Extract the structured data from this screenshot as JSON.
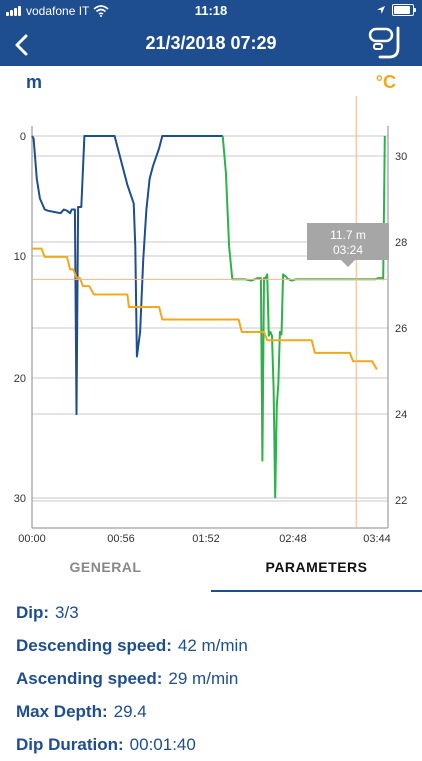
{
  "status_bar": {
    "carrier": "vodafone IT",
    "time": "11:18"
  },
  "header": {
    "title": "21/3/2018 07:29",
    "back_icon": "chevron-left-icon",
    "snorkel_icon": "snorkel-mask-icon"
  },
  "chart": {
    "left_unit": "m",
    "right_unit": "°C",
    "tooltip": {
      "depth": "11.7 m",
      "time": "03:24"
    },
    "left_ticks": [
      "0",
      "10",
      "20",
      "30"
    ],
    "right_ticks": [
      "30",
      "28",
      "26",
      "24",
      "22"
    ],
    "x_ticks": [
      "00:00",
      "00:56",
      "01:52",
      "02:48",
      "03:44"
    ]
  },
  "chart_data": {
    "type": "line",
    "xlabel": "",
    "ylabel": "m",
    "y2label": "°C",
    "xlim": [
      0,
      224
    ],
    "ylim": [
      0,
      32
    ],
    "y2lim": [
      31.0,
      21.6
    ],
    "cursor_x": 204,
    "series": [
      {
        "color": "#1e4e8f",
        "axis": "depth",
        "x": [
          0,
          1,
          3,
          5,
          8,
          10,
          14,
          18,
          20,
          22,
          24,
          25,
          27,
          28,
          29,
          31,
          33,
          37,
          40,
          48,
          52,
          56,
          60,
          64,
          65,
          66,
          68,
          70,
          72,
          74,
          76,
          80,
          82,
          84,
          88,
          100,
          115,
          120
        ],
        "y": [
          0,
          0.2,
          3.5,
          5.1,
          6.0,
          6.1,
          6.2,
          6.3,
          6.0,
          6.1,
          6.3,
          6.0,
          6.0,
          22.7,
          5.8,
          5.8,
          0,
          0,
          0,
          0,
          0,
          2,
          4,
          5.5,
          9,
          18,
          16,
          10,
          6,
          3.5,
          2.5,
          1,
          0,
          0,
          0,
          0,
          0,
          0
        ]
      },
      {
        "color": "#2db24a",
        "axis": "depth",
        "x": [
          120,
          122,
          124,
          126,
          128,
          134,
          138,
          142,
          144,
          145,
          146,
          147,
          148,
          149,
          150,
          151,
          152,
          153,
          154,
          155,
          156,
          157,
          158,
          159,
          160,
          161,
          162,
          163,
          166,
          170,
          175,
          180,
          190,
          200,
          208,
          212,
          214,
          216,
          218,
          219,
          220,
          221,
          222
        ],
        "y": [
          0,
          3,
          9,
          11.7,
          11.7,
          11.7,
          11.8,
          11.6,
          11.6,
          26.5,
          11.6,
          11.6,
          11.3,
          16.3,
          16.0,
          16.3,
          20.6,
          29.5,
          22.0,
          20.3,
          16.0,
          16.2,
          11.3,
          11.4,
          11.5,
          11.7,
          11.7,
          11.8,
          11.7,
          11.7,
          11.7,
          11.7,
          11.7,
          11.7,
          11.7,
          11.7,
          11.7,
          11.7,
          11.6,
          11.6,
          11.6,
          11.7,
          0
        ]
      },
      {
        "color": "#f0a91c",
        "axis": "temperature",
        "x": [
          0,
          6,
          8,
          22,
          24,
          26,
          28,
          30,
          32,
          36,
          39,
          60,
          61,
          80,
          82,
          130,
          132,
          146,
          148,
          176,
          178,
          200,
          202,
          214,
          217
        ],
        "y": [
          28.3,
          28.3,
          28.1,
          28.1,
          27.8,
          27.8,
          27.6,
          27.6,
          27.4,
          27.4,
          27.2,
          27.2,
          26.9,
          26.9,
          26.6,
          26.6,
          26.3,
          26.3,
          26.1,
          26.1,
          25.8,
          25.8,
          25.6,
          25.6,
          25.4
        ]
      }
    ]
  },
  "tabs": {
    "general": "GENERAL",
    "parameters": "PARAMETERS"
  },
  "params": [
    {
      "label": "Dip:",
      "value": "3/3"
    },
    {
      "label": "Descending speed:",
      "value": "42 m/min"
    },
    {
      "label": "Ascending speed:",
      "value": "29 m/min"
    },
    {
      "label": "Max Depth:",
      "value": "29.4"
    },
    {
      "label": "Dip Duration:",
      "value": "00:01:40"
    }
  ]
}
